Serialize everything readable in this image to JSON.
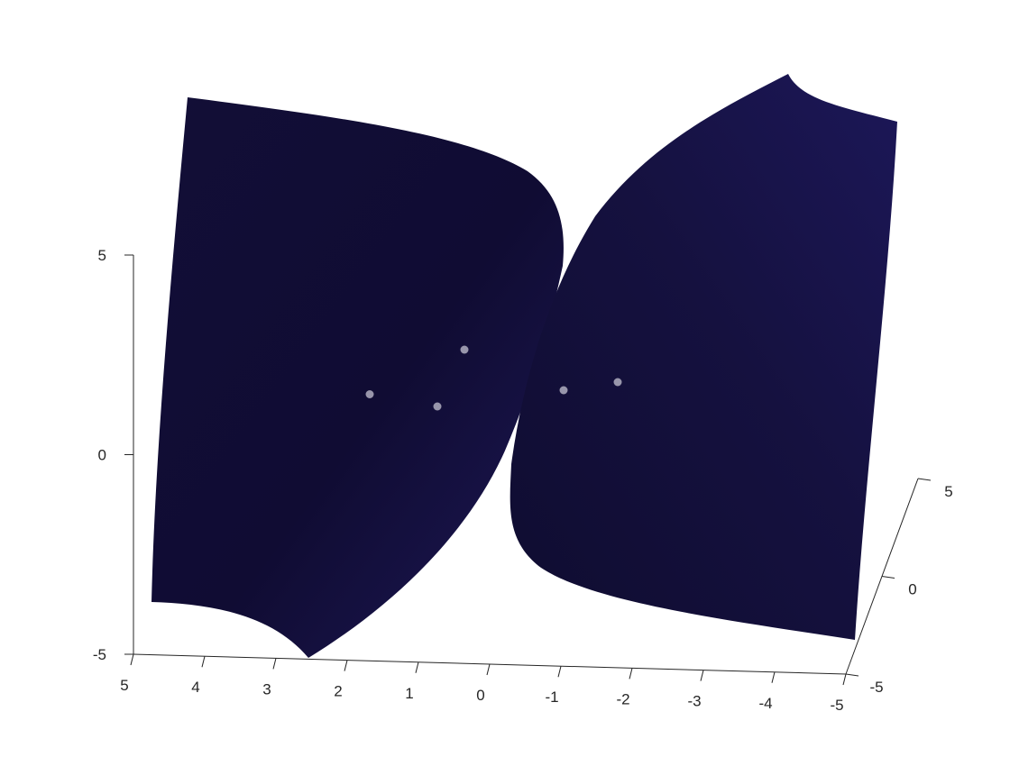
{
  "chart_data": {
    "type": "surface3d",
    "title": "",
    "xlabel": "",
    "ylabel": "",
    "zlabel": "",
    "x_axis": {
      "range": [
        -5,
        5
      ],
      "ticks": [
        5,
        4,
        3,
        2,
        1,
        0,
        -1,
        -2,
        -3,
        -4,
        -5
      ],
      "tick_labels": [
        "5",
        "4",
        "3",
        "2",
        "1",
        "0",
        "-1",
        "-2",
        "-3",
        "-4",
        "-5"
      ]
    },
    "y_axis": {
      "range": [
        -5,
        5
      ],
      "ticks": [
        5,
        0,
        -5
      ],
      "tick_labels": [
        "5",
        "0",
        "-5"
      ]
    },
    "z_axis": {
      "range": [
        -5,
        5
      ],
      "ticks": [
        5,
        0,
        -5
      ],
      "tick_labels": [
        "5",
        "0",
        "-5"
      ]
    },
    "surface": {
      "description_sheets": 2,
      "color": "#16123f",
      "color_light": "#1f1a5e"
    },
    "points": {
      "color": "#b0aec0",
      "items": [
        {
          "x": 1.6,
          "z": 1.5
        },
        {
          "x": 0.6,
          "z": 1.2
        },
        {
          "x": 0.2,
          "z": 2.6
        },
        {
          "x": -1.0,
          "z": 1.6
        },
        {
          "x": -1.8,
          "z": 1.8
        }
      ]
    },
    "grid": false,
    "legend": "none"
  }
}
